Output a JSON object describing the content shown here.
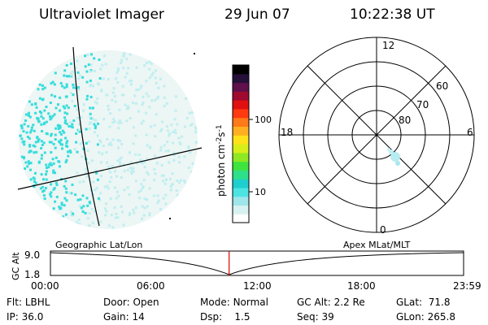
{
  "header": {
    "title": "Ultraviolet Imager",
    "date": "29 Jun 07",
    "time": "10:22:38 UT"
  },
  "colorbar": {
    "unit_prefix": "photon cm",
    "exp1": "-2",
    "mid": "s",
    "exp2": "-1",
    "ticks": [
      {
        "label": "100",
        "value": 100
      },
      {
        "label": "10",
        "value": 10
      }
    ],
    "colors": [
      "#ffffff",
      "#d8f2f2",
      "#9fe6ea",
      "#4ee3e3",
      "#1fcfcf",
      "#2ee08a",
      "#3fe33f",
      "#8ee822",
      "#d8ee1a",
      "#ffe21a",
      "#ffb020",
      "#ff7a18",
      "#ff3a10",
      "#e01010",
      "#a00a30",
      "#60104a",
      "#25103a",
      "#000000"
    ]
  },
  "polar": {
    "mlt_labels": {
      "top": "12",
      "left": "18",
      "right": "6",
      "bottom": "0"
    },
    "lat_labels": [
      "60",
      "70",
      "80"
    ]
  },
  "timeline": {
    "left_title": "Geographic Lat/Lon",
    "right_title": "Apex MLat/MLT",
    "ylabel": "GC Alt",
    "y_ticks": [
      "9.0",
      "1.8"
    ],
    "x_ticks": [
      "00:00",
      "06:00",
      "12:00",
      "18:00",
      "23:59"
    ],
    "current_time_hours": 10.378
  },
  "info": {
    "filter_label": "Flt:",
    "filter_value": "LBHL",
    "door_label": "Door:",
    "door_value": "Open",
    "mode_label": "Mode:",
    "mode_value": "Normal",
    "gcalt_label": "GC Alt:",
    "gcalt_value": "2.2 Re",
    "glat_label": "GLat:",
    "glat_value": "71.8",
    "ip_label": "IP:",
    "ip_value": "36.0",
    "gain_label": "Gain:",
    "gain_value": "14",
    "dsp_label": "Dsp:",
    "dsp_value": "1.5",
    "seq_label": "Seq:",
    "seq_value": "39",
    "glon_label": "GLon:",
    "glon_value": "265.8"
  },
  "colors": {
    "marker": "#e00000",
    "aurora_cyan": "#37dcdc",
    "aurora_light": "#bfeef0"
  }
}
